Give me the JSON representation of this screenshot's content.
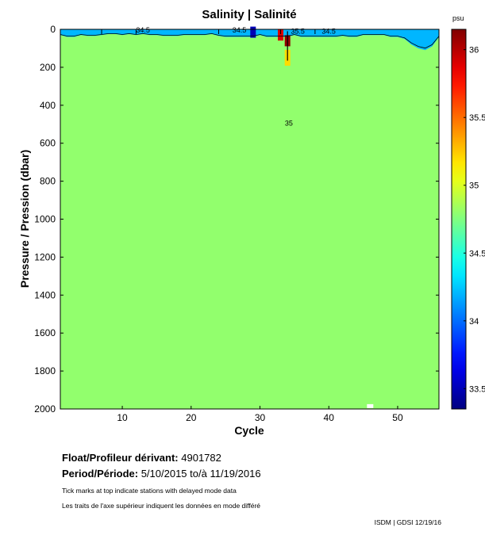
{
  "chart_data": {
    "type": "heatmap",
    "title": "Salinity | Salinité",
    "xlabel": "Cycle",
    "ylabel": "Pressure / Pression (dbar)",
    "xlim": [
      1,
      56
    ],
    "ylim": [
      2000,
      0
    ],
    "xticks": [
      10,
      20,
      30,
      40,
      50
    ],
    "yticks": [
      0,
      200,
      400,
      600,
      800,
      1000,
      1200,
      1400,
      1600,
      1800,
      2000
    ],
    "colorbar": {
      "unit": "psu",
      "range": [
        33.35,
        36.15
      ],
      "ticks": [
        33.5,
        34,
        34.5,
        35,
        35.5,
        36
      ],
      "tick_labels": [
        "33.5",
        "34",
        "34.5",
        "35",
        "35.5",
        "36"
      ]
    },
    "field": {
      "deep_value": 34.8,
      "surface_value": 34.2,
      "mixed_layer_depth": [
        30,
        40,
        40,
        30,
        35,
        35,
        30,
        25,
        25,
        30,
        25,
        30,
        25,
        30,
        30,
        35,
        35,
        35,
        30,
        30,
        30,
        30,
        25,
        35,
        40,
        40,
        40,
        40,
        40,
        30,
        40,
        40,
        40,
        40,
        30,
        40,
        40,
        40,
        40,
        40,
        40,
        35,
        40,
        40,
        30,
        30,
        30,
        30,
        40,
        40,
        50,
        80,
        100,
        110,
        90,
        40
      ],
      "anomalies": [
        {
          "cycle": 29,
          "pressure": 15,
          "value": 33.5
        },
        {
          "cycle": 33,
          "pressure": 30,
          "value": 35.9
        },
        {
          "cycle": 34,
          "pressure": 60,
          "value": 36.1
        },
        {
          "cycle": 34,
          "pressure": 150,
          "value": 35.2
        },
        {
          "cycle": 46,
          "pressure": 1985,
          "value": null
        }
      ]
    },
    "contour_labels": [
      {
        "text": "34.5",
        "cycle": 13,
        "pressure": 5
      },
      {
        "text": "34.5",
        "cycle": 27,
        "pressure": 5
      },
      {
        "text": "35.5",
        "cycle": 35.5,
        "pressure": 10
      },
      {
        "text": "34.5",
        "cycle": 40,
        "pressure": 10
      },
      {
        "text": "35",
        "cycle": 34.2,
        "pressure": 495
      }
    ],
    "delayed_mode_ticks_cycles": [
      7,
      12,
      24,
      33,
      38
    ]
  },
  "info": {
    "float_label": "Float/Profileur dérivant:",
    "float_value": "4901782",
    "period_label": "Period/Période:",
    "period_value": "5/10/2015  to/à  11/19/2016",
    "note_en": "Tick marks at top indicate stations with delayed mode data",
    "note_fr": "Les traits de l'axe supérieur indiquent les données en mode différé",
    "credit": "ISDM | GDSI  12/19/16"
  }
}
